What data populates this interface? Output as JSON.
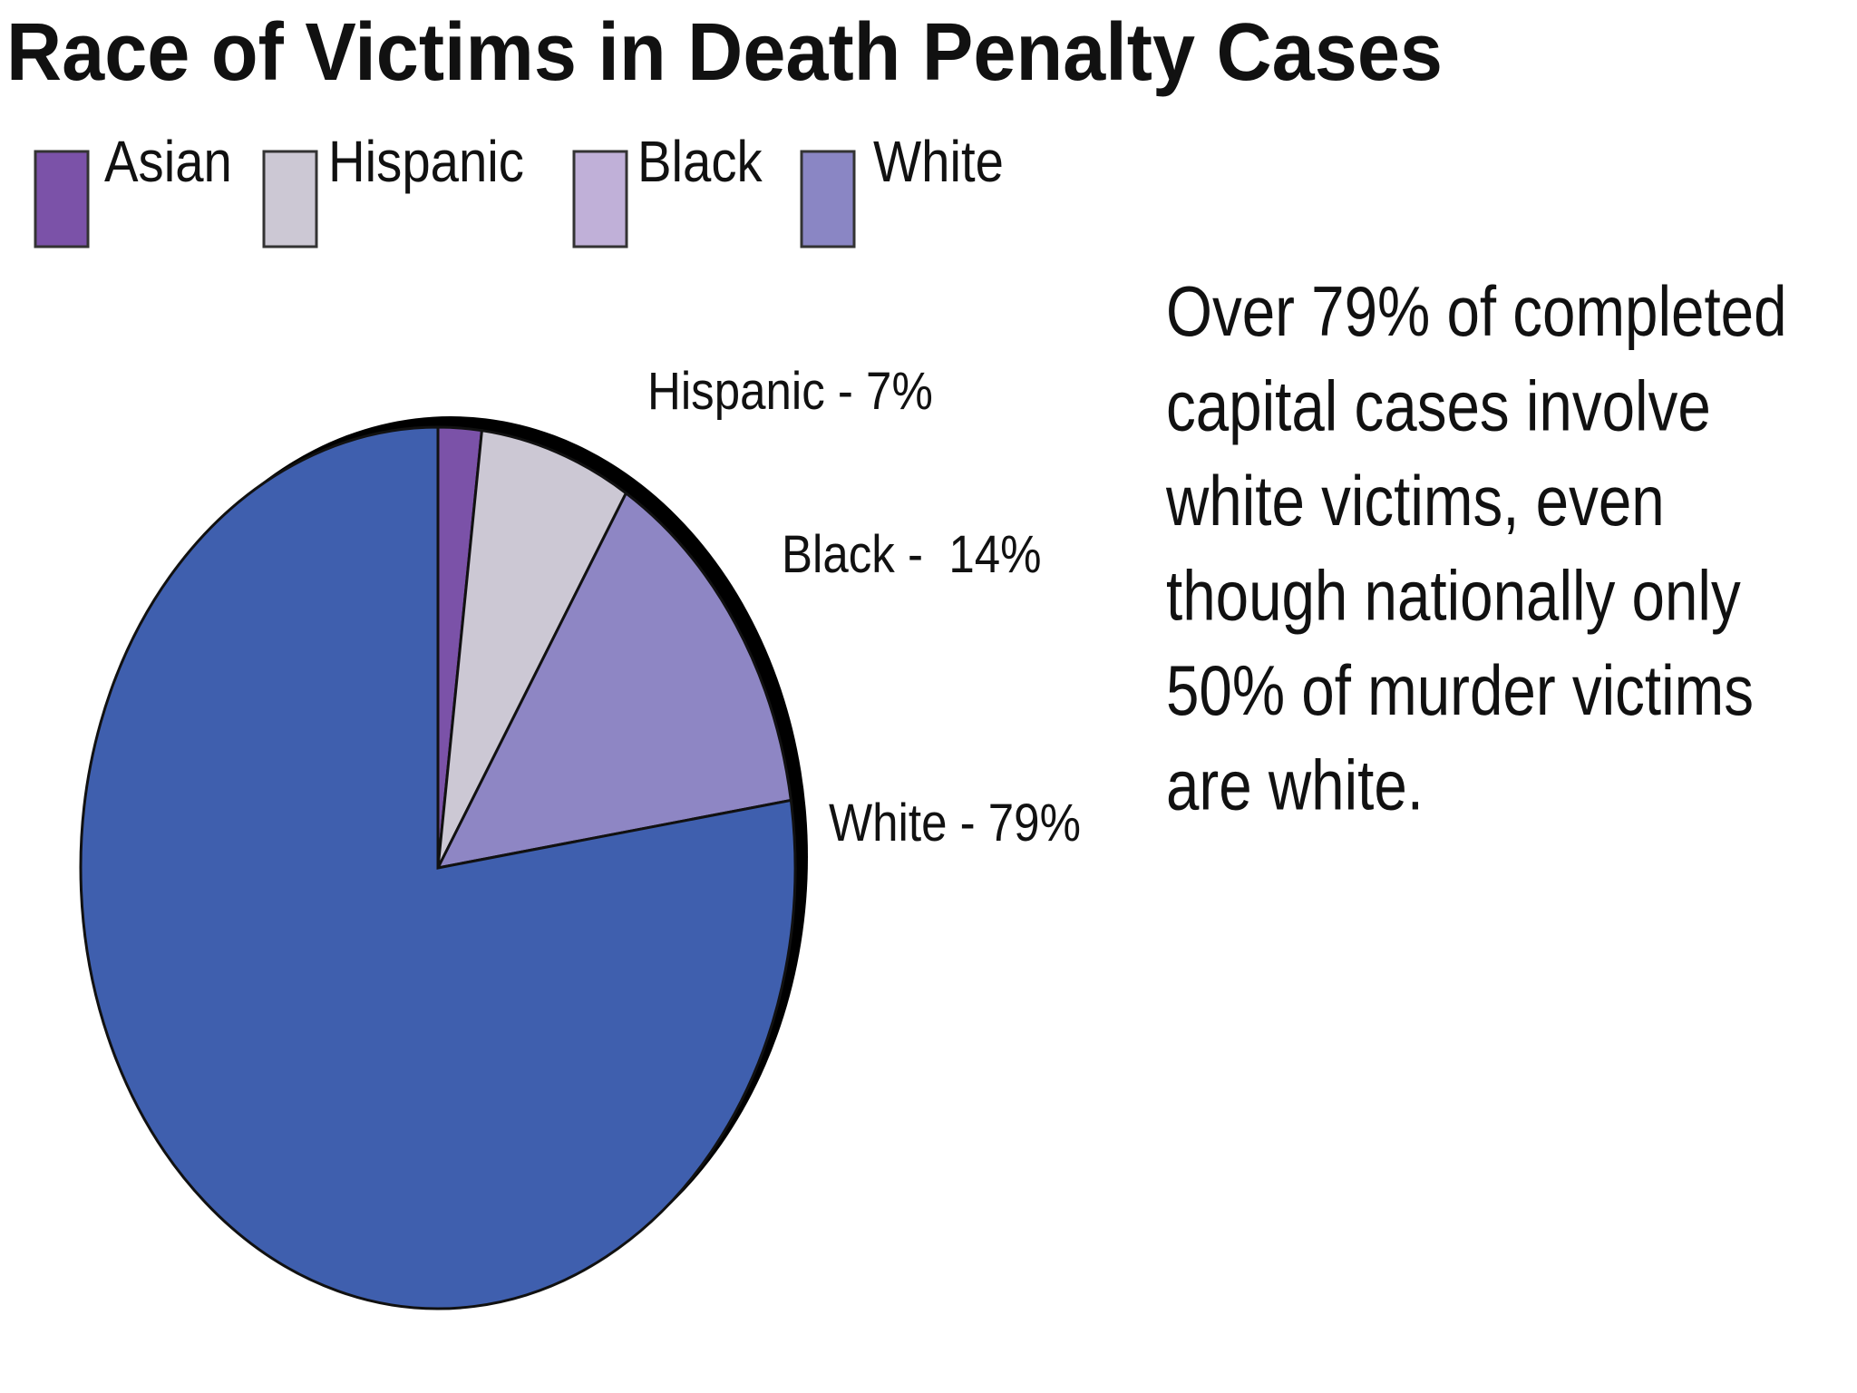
{
  "chart_data": {
    "type": "pie",
    "title": "Race of Victims in Death Penalty Cases",
    "categories": [
      "Asian",
      "Hispanic",
      "Black",
      "White"
    ],
    "values": [
      2,
      7,
      14,
      79
    ],
    "value_labels": [
      null,
      "Hispanic - 7%",
      "Black -  14%",
      "White - 79%"
    ],
    "colors": [
      "#7b52a8",
      "#ccc8d4",
      "#8e86c4",
      "#3f5fae"
    ],
    "legend": {
      "position": "top",
      "colors": [
        "#7b52a8",
        "#ccc8d4",
        "#c0b0d8",
        "#8a86c4"
      ]
    },
    "annotation": [
      "Over 79% of completed",
      "capital cases involve",
      "white victims, even",
      "though nationally only",
      "50% of murder victims",
      "are white."
    ]
  }
}
